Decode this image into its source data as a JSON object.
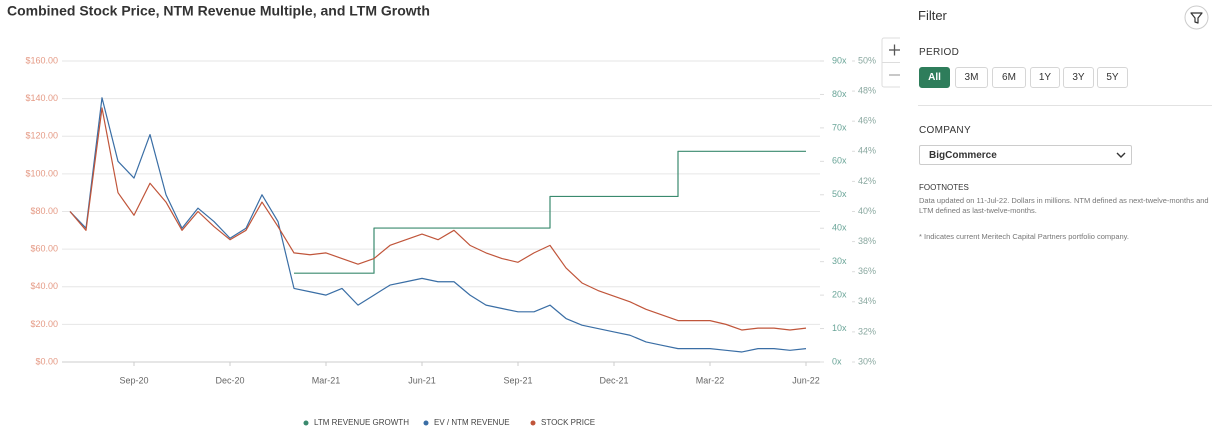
{
  "chart_data": {
    "type": "line",
    "title": "Combined Stock Price, NTM Revenue Multiple, and LTM Growth",
    "categories": [
      null,
      null,
      null,
      null,
      "Sep-20",
      null,
      null,
      null,
      null,
      null,
      "Dec-20",
      null,
      null,
      null,
      null,
      null,
      "Mar-21",
      null,
      null,
      null,
      null,
      null,
      "Jun-21",
      null,
      null,
      null,
      null,
      null,
      "Sep-21",
      null,
      null,
      null,
      null,
      null,
      "Dec-21",
      null,
      null,
      null,
      null,
      null,
      "Mar-22",
      null,
      null,
      null,
      null,
      null,
      "Jun-22"
    ],
    "series": [
      {
        "name": "LTM REVENUE GROWTH",
        "color": "#3a8a6e",
        "axis": "y3",
        "step": true,
        "values": [
          null,
          null,
          null,
          null,
          null,
          null,
          null,
          null,
          null,
          null,
          null,
          null,
          null,
          null,
          35.9,
          35.9,
          35.9,
          35.9,
          35.9,
          38.9,
          38.9,
          38.9,
          38.9,
          38.9,
          38.9,
          38.9,
          38.9,
          38.9,
          38.9,
          38.9,
          41.0,
          41.0,
          41.0,
          41.0,
          41.0,
          41.0,
          41.0,
          41.0,
          44.0,
          44.0,
          44.0,
          44.0,
          44.0,
          44.0,
          44.0,
          44.0,
          44.0
        ]
      },
      {
        "name": "EV / NTM REVENUE",
        "color": "#3a6ea5",
        "axis": "y2",
        "values": [
          45,
          40,
          79,
          60,
          55,
          68,
          50,
          40,
          46,
          42,
          37,
          40,
          50,
          42,
          22,
          21,
          20,
          22,
          17,
          20,
          23,
          24,
          25,
          24,
          24,
          20,
          17,
          16,
          15,
          15,
          17,
          13,
          11,
          10,
          9,
          8,
          6,
          5,
          4,
          4,
          4,
          3.5,
          3,
          4,
          4,
          3.5,
          4
        ]
      },
      {
        "name": "STOCK PRICE",
        "color": "#c0553a",
        "axis": "y",
        "values": [
          80,
          70,
          135,
          90,
          78,
          95,
          85,
          70,
          80,
          72,
          65,
          70,
          85,
          72,
          58,
          57,
          58,
          55,
          52,
          55,
          62,
          65,
          68,
          65,
          70,
          62,
          58,
          55,
          53,
          58,
          62,
          50,
          42,
          38,
          35,
          32,
          28,
          25,
          22,
          22,
          22,
          20,
          17,
          18,
          18,
          17,
          18
        ]
      }
    ],
    "ylim": [
      0,
      160
    ],
    "yticks": [
      {
        "value": 0,
        "label": "$0.00"
      },
      {
        "value": 20,
        "label": "$20.00"
      },
      {
        "value": 40,
        "label": "$40.00"
      },
      {
        "value": 60,
        "label": "$60.00"
      },
      {
        "value": 80,
        "label": "$80.00"
      },
      {
        "value": 100,
        "label": "$100.00"
      },
      {
        "value": 120,
        "label": "$120.00"
      },
      {
        "value": 140,
        "label": "$140.00"
      },
      {
        "value": 160,
        "label": "$160.00"
      }
    ],
    "y2lim": [
      0,
      90
    ],
    "y2ticks": [
      {
        "value": 0,
        "label": "0x"
      },
      {
        "value": 10,
        "label": "10x"
      },
      {
        "value": 20,
        "label": "20x"
      },
      {
        "value": 30,
        "label": "30x"
      },
      {
        "value": 40,
        "label": "40x"
      },
      {
        "value": 50,
        "label": "50x"
      },
      {
        "value": 60,
        "label": "60x"
      },
      {
        "value": 70,
        "label": "70x"
      },
      {
        "value": 80,
        "label": "80x"
      },
      {
        "value": 90,
        "label": "90x"
      }
    ],
    "y3lim": [
      30,
      50
    ],
    "y3ticks": [
      {
        "value": 30,
        "label": "30%"
      },
      {
        "value": 32,
        "label": "32%"
      },
      {
        "value": 34,
        "label": "34%"
      },
      {
        "value": 36,
        "label": "36%"
      },
      {
        "value": 38,
        "label": "38%"
      },
      {
        "value": 40,
        "label": "40%"
      },
      {
        "value": 42,
        "label": "42%"
      },
      {
        "value": 44,
        "label": "44%"
      },
      {
        "value": 46,
        "label": "46%"
      },
      {
        "value": 48,
        "label": "48%"
      },
      {
        "value": 50,
        "label": "50%"
      }
    ],
    "grid": true
  },
  "filter_panel": {
    "title": "Filter",
    "period_label": "PERIOD",
    "periods": [
      "All",
      "3M",
      "6M",
      "1Y",
      "3Y",
      "5Y"
    ],
    "company_label": "COMPANY",
    "company": "BigCommerce",
    "footnotes_label": "FOOTNOTES",
    "footnotes": [
      "Data updated on 11-Jul-22. Dollars in millions. NTM defined as next-twelve-months and LTM defined as last-twelve-months.",
      "* Indicates current Meritech Capital Partners portfolio company."
    ]
  }
}
